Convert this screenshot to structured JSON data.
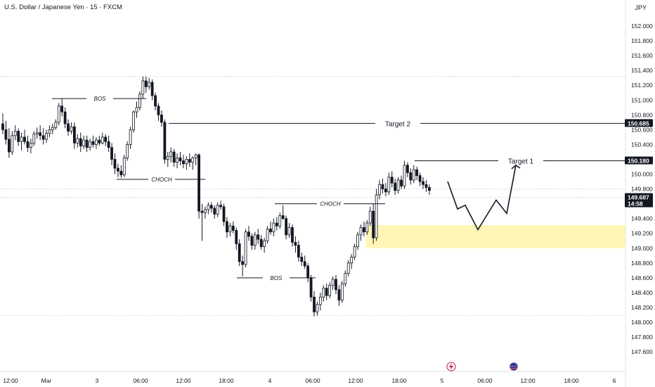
{
  "header": {
    "title": "U.S. Dollar / Japanese Yen · 15 · FXCM",
    "currency": "JPY"
  },
  "colors": {
    "up": "#ffffff",
    "down": "#131722",
    "zone": "#fff5b5",
    "line": "#131722",
    "tag": "#131722",
    "grid": "#c8cbd3"
  },
  "chart_data": {
    "type": "candlestick",
    "symbol": "U.S. Dollar / Japanese Yen · 15 · FXCM",
    "ylim": [
      147.55,
      152.25
    ],
    "y_ticks": [
      "152.000",
      "151.800",
      "151.600",
      "151.400",
      "151.200",
      "151.000",
      "150.800",
      "150.600",
      "150.400",
      "150.200",
      "150.000",
      "149.800",
      "149.600",
      "149.400",
      "149.200",
      "149.000",
      "148.800",
      "148.600",
      "148.400",
      "148.200",
      "148.000",
      "147.800",
      "147.600"
    ],
    "x_ticks": [
      "12:00",
      "Mar",
      "3",
      "06:00",
      "12:00",
      "18:00",
      "4",
      "06:00",
      "12:00",
      "18:00",
      "5",
      "06:00",
      "12:00",
      "18:00",
      "6"
    ],
    "price_tags": [
      {
        "label": "150.685",
        "value": 150.685
      },
      {
        "label": "150.180",
        "value": 150.18
      },
      {
        "label": "149.687",
        "value": 149.687,
        "sub": "14:58"
      }
    ],
    "horizontal_dotted": [
      151.32,
      149.8,
      149.687,
      148.09
    ],
    "annotations": [
      {
        "label": "BOS",
        "price": 151.02
      },
      {
        "label": "CHOCH",
        "price": 149.93
      },
      {
        "label": "CHOCH",
        "price": 149.6
      },
      {
        "label": "BOS",
        "price": 148.6
      }
    ],
    "targets": [
      {
        "label": "Target 2",
        "price": 150.685
      },
      {
        "label": "Target 1",
        "price": 150.18
      }
    ],
    "zone": {
      "top": 149.31,
      "bottom": 149.0
    },
    "projection": [
      149.9,
      149.53,
      149.58,
      149.25,
      149.65,
      149.47,
      150.12
    ],
    "icons": [
      "lightning-icon",
      "us-flag-icon"
    ],
    "candles": [
      [
        150.68,
        150.82,
        150.54,
        150.6
      ],
      [
        150.6,
        150.72,
        150.4,
        150.47
      ],
      [
        150.47,
        150.62,
        150.22,
        150.3
      ],
      [
        150.3,
        150.58,
        150.26,
        150.52
      ],
      [
        150.52,
        150.66,
        150.46,
        150.58
      ],
      [
        150.58,
        150.62,
        150.38,
        150.44
      ],
      [
        150.44,
        150.56,
        150.32,
        150.5
      ],
      [
        150.5,
        150.6,
        150.4,
        150.44
      ],
      [
        150.44,
        150.52,
        150.3,
        150.36
      ],
      [
        150.36,
        150.48,
        150.28,
        150.42
      ],
      [
        150.42,
        150.58,
        150.38,
        150.54
      ],
      [
        150.54,
        150.63,
        150.48,
        150.56
      ],
      [
        150.56,
        150.66,
        150.46,
        150.52
      ],
      [
        150.52,
        150.62,
        150.4,
        150.47
      ],
      [
        150.47,
        150.6,
        150.42,
        150.55
      ],
      [
        150.55,
        150.66,
        150.5,
        150.6
      ],
      [
        150.6,
        150.68,
        150.54,
        150.63
      ],
      [
        150.63,
        150.74,
        150.6,
        150.7
      ],
      [
        150.7,
        150.96,
        150.66,
        150.92
      ],
      [
        150.92,
        151.02,
        150.78,
        150.84
      ],
      [
        150.84,
        150.9,
        150.62,
        150.68
      ],
      [
        150.68,
        150.74,
        150.52,
        150.58
      ],
      [
        150.58,
        150.7,
        150.54,
        150.64
      ],
      [
        150.64,
        150.7,
        150.34,
        150.42
      ],
      [
        150.42,
        150.54,
        150.36,
        150.48
      ],
      [
        150.48,
        150.56,
        150.3,
        150.38
      ],
      [
        150.38,
        150.52,
        150.34,
        150.46
      ],
      [
        150.46,
        150.52,
        150.3,
        150.36
      ],
      [
        150.36,
        150.48,
        150.32,
        150.44
      ],
      [
        150.44,
        150.52,
        150.36,
        150.4
      ],
      [
        150.4,
        150.5,
        150.34,
        150.46
      ],
      [
        150.46,
        150.52,
        150.38,
        150.42
      ],
      [
        150.42,
        150.56,
        150.4,
        150.5
      ],
      [
        150.5,
        150.54,
        150.38,
        150.44
      ],
      [
        150.44,
        150.52,
        150.3,
        150.36
      ],
      [
        150.36,
        150.42,
        150.12,
        150.2
      ],
      [
        150.2,
        150.28,
        150.0,
        150.08
      ],
      [
        150.08,
        150.14,
        149.96,
        150.04
      ],
      [
        150.04,
        150.12,
        149.95,
        149.99
      ],
      [
        149.99,
        150.26,
        149.96,
        150.22
      ],
      [
        150.22,
        150.44,
        150.18,
        150.4
      ],
      [
        150.4,
        150.64,
        150.34,
        150.6
      ],
      [
        150.6,
        150.86,
        150.56,
        150.84
      ],
      [
        150.84,
        150.98,
        150.76,
        150.9
      ],
      [
        150.9,
        151.12,
        150.86,
        151.08
      ],
      [
        151.08,
        151.32,
        151.02,
        151.26
      ],
      [
        151.26,
        151.32,
        151.1,
        151.18
      ],
      [
        151.18,
        151.3,
        151.14,
        151.24
      ],
      [
        151.24,
        151.28,
        151.0,
        151.06
      ],
      [
        151.06,
        151.1,
        150.86,
        150.92
      ],
      [
        150.92,
        150.96,
        150.72,
        150.8
      ],
      [
        150.8,
        150.86,
        150.64,
        150.7
      ],
      [
        150.7,
        150.74,
        150.14,
        150.2
      ],
      [
        150.2,
        150.3,
        150.1,
        150.24
      ],
      [
        150.24,
        150.36,
        150.16,
        150.3
      ],
      [
        150.3,
        150.34,
        150.1,
        150.16
      ],
      [
        150.16,
        150.28,
        150.08,
        150.22
      ],
      [
        150.22,
        150.3,
        150.12,
        150.18
      ],
      [
        150.18,
        150.26,
        150.08,
        150.14
      ],
      [
        150.14,
        150.24,
        150.06,
        150.2
      ],
      [
        150.2,
        150.28,
        150.1,
        150.16
      ],
      [
        150.16,
        150.24,
        150.06,
        150.22
      ],
      [
        150.22,
        150.28,
        150.12,
        150.26
      ],
      [
        150.26,
        150.28,
        149.4,
        149.5
      ],
      [
        149.5,
        149.6,
        149.1,
        149.48
      ],
      [
        149.48,
        149.56,
        149.4,
        149.52
      ],
      [
        149.52,
        149.62,
        149.46,
        149.58
      ],
      [
        149.58,
        149.62,
        149.48,
        149.54
      ],
      [
        149.54,
        149.58,
        149.4,
        149.46
      ],
      [
        149.46,
        149.62,
        149.42,
        149.58
      ],
      [
        149.58,
        149.64,
        149.52,
        149.56
      ],
      [
        149.56,
        149.6,
        149.3,
        149.36
      ],
      [
        149.36,
        149.42,
        149.14,
        149.22
      ],
      [
        149.22,
        149.34,
        149.16,
        149.3
      ],
      [
        149.3,
        149.36,
        149.2,
        149.24
      ],
      [
        149.24,
        149.28,
        148.98,
        149.06
      ],
      [
        149.06,
        149.12,
        148.76,
        148.82
      ],
      [
        148.82,
        148.9,
        148.62,
        148.78
      ],
      [
        148.78,
        149.26,
        148.74,
        149.22
      ],
      [
        149.22,
        149.3,
        149.1,
        149.16
      ],
      [
        149.16,
        149.2,
        148.98,
        149.04
      ],
      [
        149.04,
        149.22,
        148.98,
        149.18
      ],
      [
        149.18,
        149.26,
        149.06,
        149.12
      ],
      [
        149.12,
        149.18,
        148.98,
        149.02
      ],
      [
        149.02,
        149.14,
        148.94,
        149.1
      ],
      [
        149.1,
        149.3,
        149.06,
        149.26
      ],
      [
        149.26,
        149.36,
        149.18,
        149.22
      ],
      [
        149.22,
        149.4,
        149.16,
        149.34
      ],
      [
        149.34,
        149.42,
        149.24,
        149.3
      ],
      [
        149.3,
        149.48,
        149.26,
        149.44
      ],
      [
        149.44,
        149.58,
        149.38,
        149.4
      ],
      [
        149.4,
        149.44,
        149.12,
        149.18
      ],
      [
        149.18,
        149.34,
        149.14,
        149.28
      ],
      [
        149.28,
        149.32,
        149.02,
        149.08
      ],
      [
        149.08,
        149.16,
        148.94,
        149.04
      ],
      [
        149.04,
        149.1,
        148.82,
        148.88
      ],
      [
        148.88,
        148.94,
        148.76,
        148.82
      ],
      [
        148.82,
        148.9,
        148.72,
        148.76
      ],
      [
        148.76,
        148.8,
        148.54,
        148.6
      ],
      [
        148.6,
        148.64,
        148.28,
        148.34
      ],
      [
        148.34,
        148.42,
        148.08,
        148.14
      ],
      [
        148.14,
        148.28,
        148.09,
        148.24
      ],
      [
        148.24,
        148.4,
        148.16,
        148.34
      ],
      [
        148.34,
        148.5,
        148.28,
        148.46
      ],
      [
        148.46,
        148.52,
        148.3,
        148.36
      ],
      [
        148.36,
        148.54,
        148.32,
        148.5
      ],
      [
        148.5,
        148.62,
        148.44,
        148.58
      ],
      [
        148.58,
        148.64,
        148.38,
        148.44
      ],
      [
        148.44,
        148.5,
        148.22,
        148.3
      ],
      [
        148.3,
        148.56,
        148.26,
        148.52
      ],
      [
        148.52,
        148.7,
        148.48,
        148.66
      ],
      [
        148.66,
        148.84,
        148.62,
        148.8
      ],
      [
        148.8,
        148.92,
        148.72,
        148.88
      ],
      [
        148.88,
        149.06,
        148.84,
        149.02
      ],
      [
        149.02,
        149.22,
        148.98,
        149.18
      ],
      [
        149.18,
        149.32,
        149.1,
        149.28
      ],
      [
        149.28,
        149.36,
        149.16,
        149.22
      ],
      [
        149.22,
        149.38,
        149.18,
        149.34
      ],
      [
        149.34,
        149.56,
        149.3,
        149.5
      ],
      [
        149.5,
        149.6,
        149.06,
        149.14
      ],
      [
        149.14,
        149.8,
        149.1,
        149.72
      ],
      [
        149.72,
        149.92,
        149.66,
        149.86
      ],
      [
        149.86,
        149.94,
        149.74,
        149.8
      ],
      [
        149.8,
        149.88,
        149.7,
        149.76
      ],
      [
        149.76,
        150.02,
        149.72,
        149.96
      ],
      [
        149.96,
        150.04,
        149.82,
        149.88
      ],
      [
        149.88,
        149.94,
        149.72,
        149.78
      ],
      [
        149.78,
        149.96,
        149.74,
        149.92
      ],
      [
        149.92,
        149.98,
        149.8,
        149.84
      ],
      [
        149.84,
        150.18,
        149.8,
        150.12
      ],
      [
        150.12,
        150.16,
        149.96,
        150.02
      ],
      [
        150.02,
        150.08,
        149.86,
        149.92
      ],
      [
        149.92,
        150.12,
        149.88,
        150.06
      ],
      [
        150.06,
        150.1,
        149.92,
        149.98
      ],
      [
        149.98,
        150.02,
        149.84,
        149.9
      ],
      [
        149.9,
        149.96,
        149.8,
        149.86
      ],
      [
        149.86,
        149.92,
        149.76,
        149.82
      ],
      [
        149.82,
        149.86,
        149.72,
        149.78
      ]
    ]
  }
}
